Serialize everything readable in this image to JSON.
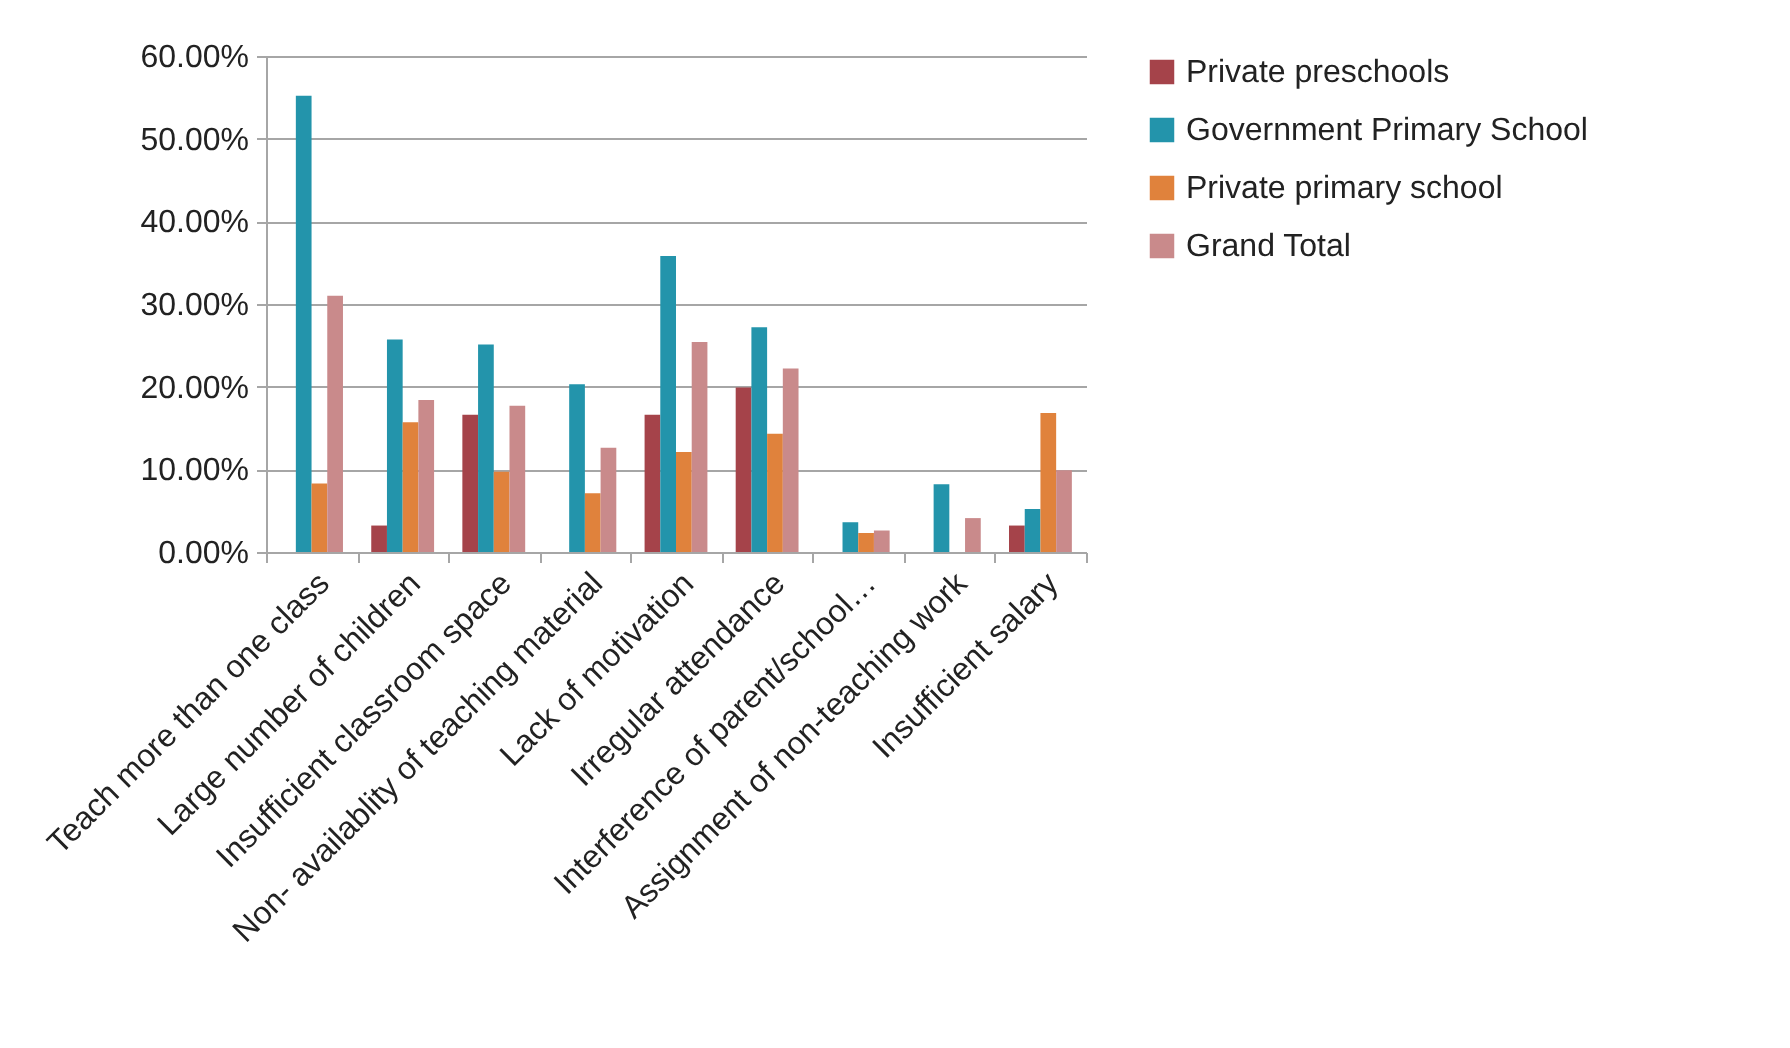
{
  "chart_data": {
    "type": "bar",
    "categories": [
      "Teach more than one class",
      "Large number of children",
      "Insufficient classroom space",
      "Non- availablity of teaching material",
      "Lack of motivation",
      "Irregular attendance",
      "Interference of parent/school…",
      "Assignment of non-teaching work",
      "Insufficient salary"
    ],
    "series": [
      {
        "name": "Private preschools",
        "color": "#a5434a",
        "values": [
          0,
          3.2,
          16.6,
          0,
          16.6,
          19.9,
          0,
          0,
          3.2
        ]
      },
      {
        "name": "Government Primary School",
        "color": "#2394ab",
        "values": [
          55.2,
          25.7,
          25.1,
          20.3,
          35.8,
          27.2,
          3.6,
          8.2,
          5.2
        ]
      },
      {
        "name": "Private primary school",
        "color": "#e0823c",
        "values": [
          8.3,
          15.7,
          9.7,
          7.1,
          12.1,
          14.3,
          2.3,
          0,
          16.8
        ]
      },
      {
        "name": "Grand Total",
        "color": "#c98a8b",
        "values": [
          31.0,
          18.4,
          17.7,
          12.6,
          25.4,
          22.2,
          2.6,
          4.1,
          9.9
        ]
      }
    ],
    "ylim": [
      0,
      60
    ],
    "yticks": [
      {
        "value": 0,
        "label": "0.00%"
      },
      {
        "value": 10,
        "label": "10.00%"
      },
      {
        "value": 20,
        "label": "20.00%"
      },
      {
        "value": 30,
        "label": "30.00%"
      },
      {
        "value": 40,
        "label": "40.00%"
      },
      {
        "value": 50,
        "label": "50.00%"
      },
      {
        "value": 60,
        "label": "60.00%"
      }
    ],
    "grid": "y",
    "legend": "right"
  }
}
